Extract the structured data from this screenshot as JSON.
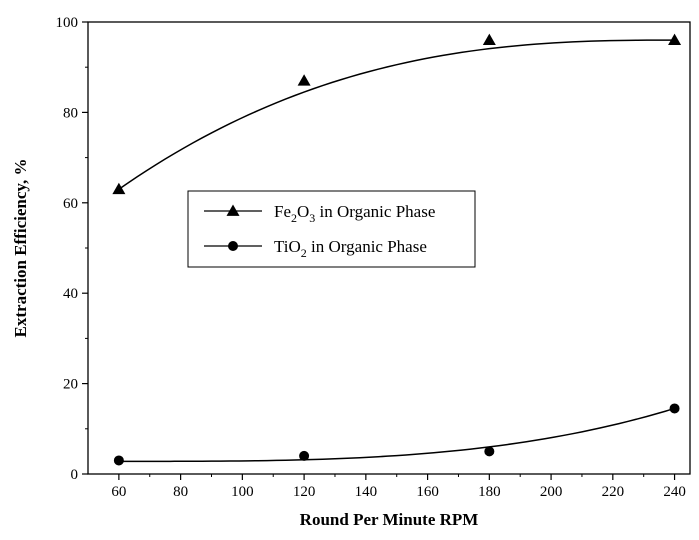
{
  "chart_data": {
    "type": "scatter",
    "title": "",
    "xlabel": "Round Per Minute RPM",
    "ylabel": "Extraction Efficiency, %",
    "xlim": [
      50,
      245
    ],
    "ylim": [
      0,
      100
    ],
    "xticks": [
      60,
      80,
      100,
      120,
      140,
      160,
      180,
      200,
      220,
      240
    ],
    "yticks": [
      0,
      20,
      40,
      60,
      80,
      100
    ],
    "grid": false,
    "legend_position": "center-left",
    "series": [
      {
        "name_base": "Fe",
        "name_sub1": "2",
        "name_mid": "O",
        "name_sub2": "3",
        "name_rest": " in Organic Phase",
        "marker": "triangle",
        "color": "#000000",
        "x": [
          60,
          120,
          180,
          240
        ],
        "y": [
          63,
          87,
          96,
          96
        ]
      },
      {
        "name_base": "TiO",
        "name_sub1": "2",
        "name_mid": "",
        "name_sub2": "",
        "name_rest": " in Organic Phase",
        "marker": "circle",
        "color": "#000000",
        "x": [
          60,
          120,
          180,
          240
        ],
        "y": [
          3,
          4,
          5,
          14.5
        ]
      }
    ]
  }
}
